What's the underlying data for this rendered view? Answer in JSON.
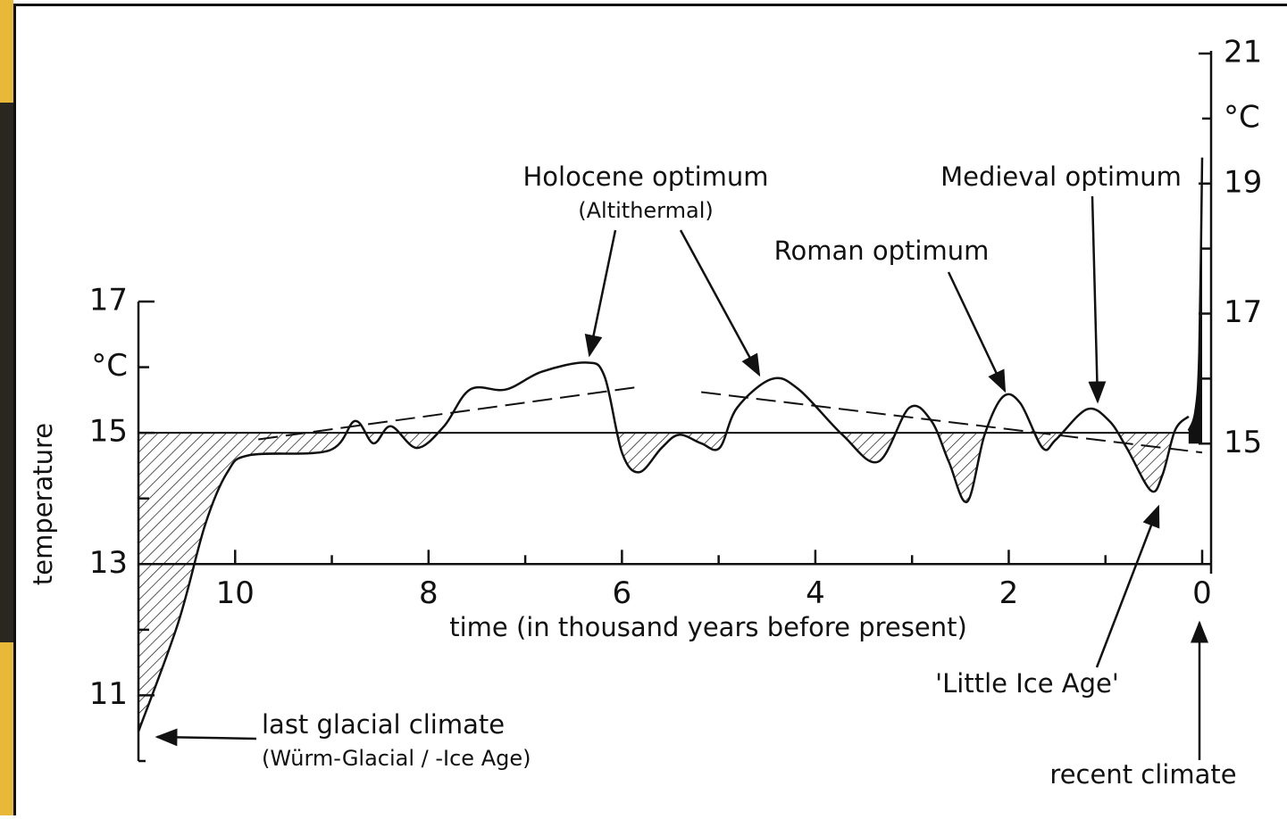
{
  "chart_data": {
    "type": "line",
    "x_label": "time (in thousand years before present)",
    "y_label": "temperature",
    "y_unit": "°C",
    "y2_unit": "°C",
    "xlim": [
      11,
      0
    ],
    "xticks": [
      10,
      8,
      6,
      4,
      2,
      0
    ],
    "ylim": [
      10,
      17
    ],
    "yticks": [
      11,
      13,
      15,
      17
    ],
    "y2lim": [
      13,
      21
    ],
    "y2ticks": [
      15,
      17,
      19,
      21
    ],
    "reference_value": 15,
    "color": "#111111",
    "series": [
      {
        "x": [
          11.0,
          10.59,
          10.31,
          10.08,
          9.85,
          9.03,
          8.76,
          8.57,
          8.39,
          8.12,
          7.84,
          7.57,
          7.2,
          6.83,
          6.37,
          6.18,
          6.0,
          5.82,
          5.59,
          5.41,
          5.18,
          4.99,
          4.81,
          4.45,
          4.17,
          3.72,
          3.35,
          3.03,
          2.8,
          2.62,
          2.43,
          2.25,
          2.06,
          1.88,
          1.65,
          1.51,
          1.19,
          0.96,
          0.78,
          0.53,
          0.41,
          0.28,
          0.14
        ],
        "values": [
          10.45,
          12.1,
          13.6,
          14.4,
          14.66,
          14.73,
          15.18,
          14.84,
          15.1,
          14.77,
          15.1,
          15.66,
          15.66,
          15.93,
          16.07,
          15.86,
          14.7,
          14.4,
          14.77,
          14.97,
          14.84,
          14.77,
          15.38,
          15.82,
          15.66,
          14.97,
          14.56,
          15.38,
          15.18,
          14.56,
          13.95,
          14.97,
          15.55,
          15.45,
          14.77,
          14.9,
          15.36,
          15.18,
          14.77,
          14.12,
          14.36,
          15.04,
          15.25
        ]
      },
      {
        "axis": "y2",
        "x": [
          0.14,
          0.07,
          0.03,
          0.0
        ],
        "values": [
          15.2,
          15.5,
          16.4,
          19.4
        ]
      }
    ],
    "trend_lines": [
      {
        "x": [
          9.76,
          5.82
        ],
        "values": [
          14.9,
          15.7
        ]
      },
      {
        "x": [
          5.18,
          0.0
        ],
        "values": [
          15.62,
          14.7
        ]
      }
    ],
    "annotations": {
      "holocene": "Holocene optimum",
      "holocene_sub": "(Altithermal)",
      "roman": "Roman optimum",
      "medieval": "Medieval optimum",
      "little_ice_age": "'Little Ice Age'",
      "glacial": "last glacial climate",
      "glacial_sub": "(Würm-Glacial / -Ice Age)",
      "recent": "recent climate"
    }
  }
}
